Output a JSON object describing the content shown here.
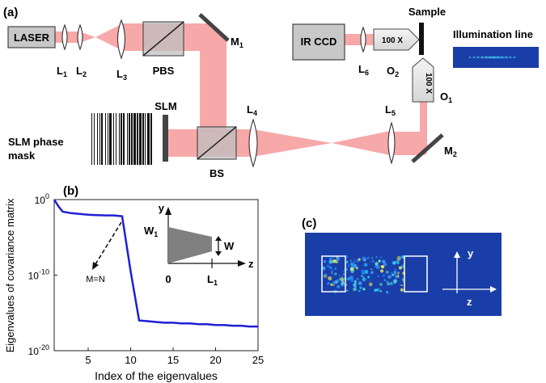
{
  "colors": {
    "beam": "#f7a8a8",
    "component_fill": "#c8c8c8",
    "lens_fill": "#ffffff",
    "curve": "#1f1fd6",
    "image_bg": "#1a3ea8"
  },
  "panel_a": {
    "label": "(a)",
    "laser": "LASER",
    "l1": "L",
    "l1_sub": "1",
    "l2": "L",
    "l2_sub": "2",
    "l3": "L",
    "l3_sub": "3",
    "pbs": "PBS",
    "m1": "M",
    "m1_sub": "1",
    "ir_ccd": "IR CCD",
    "sample": "Sample",
    "illumination_line": "Illumination line",
    "obj_o2_mag": "100 X",
    "obj_o1_mag": "100 X",
    "l6": "L",
    "l6_sub": "6",
    "o2": "O",
    "o2_sub": "2",
    "o1": "O",
    "o1_sub": "1",
    "slm": "SLM",
    "slm_mask_1": "SLM phase",
    "slm_mask_2": "mask",
    "l4": "L",
    "l4_sub": "4",
    "l5": "L",
    "l5_sub": "5",
    "bs": "BS",
    "m2": "M",
    "m2_sub": "2"
  },
  "panel_b": {
    "label": "(b)",
    "annotation": "M=N",
    "inset": {
      "y_label": "y",
      "z_label": "z",
      "w1": "W",
      "w1_sub": "1",
      "w": "W",
      "zero": "0",
      "l1": "L",
      "l1_sub": "1"
    }
  },
  "panel_c": {
    "label": "(c)",
    "y_label": "y",
    "z_label": "z"
  },
  "chart_data": {
    "type": "line",
    "title": "",
    "xlabel": "Index of the eigenvalues",
    "ylabel": "Eigenvalues of covariance matrix",
    "y_scale": "log",
    "xlim": [
      1,
      25
    ],
    "ylim_exp": [
      -20,
      0
    ],
    "x_ticks": [
      "5",
      "10",
      "15",
      "20",
      "25"
    ],
    "y_ticks": [
      {
        "base": "10",
        "exp": "0"
      },
      {
        "base": "10",
        "exp": "-10"
      },
      {
        "base": "10",
        "exp": "-20"
      }
    ],
    "series": [
      {
        "x": [
          1,
          1.5,
          2,
          3,
          4,
          5,
          6,
          7,
          8,
          9,
          10,
          11,
          12,
          13,
          14,
          15,
          16,
          17,
          18,
          19,
          20,
          21,
          22,
          23,
          24,
          25
        ],
        "log10_y": [
          0,
          -0.9,
          -1.6,
          -1.8,
          -1.9,
          -2.0,
          -2.05,
          -2.1,
          -2.1,
          -2.2,
          -9.5,
          -16.0,
          -16.1,
          -16.2,
          -16.3,
          -16.3,
          -16.4,
          -16.4,
          -16.5,
          -16.5,
          -16.6,
          -16.6,
          -16.7,
          -16.7,
          -16.8,
          -16.8
        ]
      }
    ]
  }
}
